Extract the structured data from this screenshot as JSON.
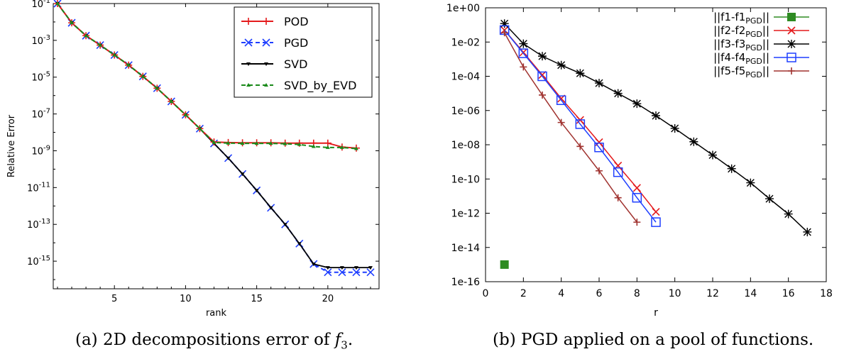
{
  "captions": {
    "left_prefix": "(a) 2D decompositions error of ",
    "left_math_base": "f",
    "left_math_sub": "3",
    "left_suffix": ".",
    "right": "(b) PGD applied on a pool of functions."
  },
  "chart_data": [
    {
      "type": "line",
      "title": "",
      "xlabel": "rank",
      "ylabel": "Relative Error",
      "xlim": [
        0.7,
        23.6
      ],
      "ylim_log10": [
        -16.5,
        -1
      ],
      "yscale": "log",
      "grid": false,
      "legend_position": "top-right",
      "xticks": [
        5,
        10,
        15,
        20
      ],
      "yticks_exponents": [
        -1,
        -3,
        -5,
        -7,
        -9,
        -11,
        -13,
        -15
      ],
      "ytick_base": "10",
      "series": [
        {
          "name": "POD",
          "color": "#e41a1c",
          "marker": "plus",
          "dash": "solid",
          "x": [
            1,
            2,
            3,
            4,
            5,
            6,
            7,
            8,
            9,
            10,
            11,
            12,
            13,
            14,
            15,
            16,
            17,
            18,
            19,
            20,
            21,
            22
          ],
          "y": [
            0.1,
            0.009,
            0.0018,
            0.00055,
            0.00016,
            4.5e-05,
            1.1e-05,
            2.5e-06,
            4.8e-07,
            9e-08,
            1.6e-08,
            3e-09,
            2.8e-09,
            2.7e-09,
            2.7e-09,
            2.7e-09,
            2.6e-09,
            2.6e-09,
            2.6e-09,
            2.6e-09,
            1.6e-09,
            1.4e-09
          ]
        },
        {
          "name": "PGD",
          "color": "#1f3fff",
          "marker": "x",
          "dash": "dashed",
          "x": [
            1,
            2,
            3,
            4,
            5,
            6,
            7,
            8,
            9,
            10,
            11,
            12,
            13,
            14,
            15,
            16,
            17,
            18,
            19,
            20,
            21,
            22,
            23
          ],
          "y": [
            0.1,
            0.009,
            0.0018,
            0.00055,
            0.00016,
            4.5e-05,
            1.1e-05,
            2.5e-06,
            4.8e-07,
            9e-08,
            1.6e-08,
            2.5e-09,
            4e-10,
            5.5e-11,
            7e-12,
            8e-13,
            1e-13,
            9e-15,
            7e-16,
            2.5e-16,
            2.5e-16,
            2.5e-16,
            2.5e-16
          ]
        },
        {
          "name": "SVD",
          "color": "#000000",
          "marker": "tri_down",
          "dash": "solid",
          "x": [
            1,
            2,
            3,
            4,
            5,
            6,
            7,
            8,
            9,
            10,
            11,
            12,
            13,
            14,
            15,
            16,
            17,
            18,
            19,
            20,
            21,
            22,
            23
          ],
          "y": [
            0.1,
            0.009,
            0.0018,
            0.00055,
            0.00016,
            4.5e-05,
            1.1e-05,
            2.5e-06,
            4.8e-07,
            9e-08,
            1.6e-08,
            2.5e-09,
            4e-10,
            5.5e-11,
            7e-12,
            8e-13,
            1e-13,
            9e-15,
            7e-16,
            4.5e-16,
            4.5e-16,
            4.5e-16,
            4.5e-16
          ]
        },
        {
          "name": "SVD_by_EVD",
          "color": "#1a8a1a",
          "marker": "tri_up",
          "dash": "dashed",
          "x": [
            1,
            2,
            3,
            4,
            5,
            6,
            7,
            8,
            9,
            10,
            11,
            12,
            13,
            14,
            15,
            16,
            17,
            18,
            19,
            20,
            21,
            22
          ],
          "y": [
            0.1,
            0.009,
            0.0018,
            0.00055,
            0.00016,
            4.5e-05,
            1.1e-05,
            2.5e-06,
            4.8e-07,
            9e-08,
            1.6e-08,
            2.8e-09,
            2.6e-09,
            2.5e-09,
            2.5e-09,
            2.5e-09,
            2.4e-09,
            2.2e-09,
            1.7e-09,
            1.5e-09,
            1.5e-09,
            1.3e-09
          ]
        }
      ]
    },
    {
      "type": "line",
      "title": "",
      "xlabel": "r",
      "ylabel": "",
      "xlim": [
        0,
        18
      ],
      "ylim_log10": [
        -16,
        0
      ],
      "yscale": "log",
      "grid": false,
      "legend_position": "top-right",
      "xticks": [
        0,
        2,
        4,
        6,
        8,
        10,
        12,
        14,
        16,
        18
      ],
      "yticks_labels": [
        "1e+00",
        "1e-02",
        "1e-04",
        "1e-06",
        "1e-08",
        "1e-10",
        "1e-12",
        "1e-14",
        "1e-16"
      ],
      "series": [
        {
          "name": "||f1-f1PGD||",
          "name_main": "||f1-f1",
          "name_sub": "PGD",
          "name_tail": "||",
          "color": "#2e8b22",
          "marker": "filled-square",
          "x": [
            1
          ],
          "y": [
            1e-15
          ]
        },
        {
          "name": "||f2-f2PGD||",
          "name_main": "||f2-f2",
          "name_sub": "PGD",
          "name_tail": "||",
          "color": "#e41a1c",
          "marker": "x",
          "x": [
            1,
            2,
            3,
            4,
            5,
            6,
            7,
            8,
            9
          ],
          "y": [
            0.05,
            0.0025,
            0.00012,
            5e-06,
            2.8e-07,
            1.4e-08,
            6e-10,
            3e-11,
            1.2e-12
          ]
        },
        {
          "name": "||f3-f3PGD||",
          "name_main": "||f3-f3",
          "name_sub": "PGD",
          "name_tail": "||",
          "color": "#000000",
          "marker": "star",
          "x": [
            1,
            2,
            3,
            4,
            5,
            6,
            7,
            8,
            9,
            10,
            11,
            12,
            13,
            14,
            15,
            16,
            17
          ],
          "y": [
            0.12,
            0.008,
            0.0015,
            0.00045,
            0.00015,
            4e-05,
            1e-05,
            2.5e-06,
            5e-07,
            9e-08,
            1.5e-08,
            2.5e-09,
            4e-10,
            6e-11,
            7e-12,
            9e-13,
            8e-14
          ]
        },
        {
          "name": "||f4-f4PGD||",
          "name_main": "||f4-f4",
          "name_sub": "PGD",
          "name_tail": "||",
          "color": "#1f3fff",
          "marker": "open-square",
          "x": [
            1,
            2,
            3,
            4,
            5,
            6,
            7,
            8,
            9
          ],
          "y": [
            0.05,
            0.0022,
            0.0001,
            4e-06,
            1.6e-07,
            7e-09,
            2.5e-10,
            8e-12,
            3e-13
          ]
        },
        {
          "name": "||f5-f5PGD||",
          "name_main": "||f5-f5",
          "name_sub": "PGD",
          "name_tail": "||",
          "color": "#a0322f",
          "marker": "plus",
          "x": [
            1,
            2,
            3,
            4,
            5,
            6,
            7,
            8
          ],
          "y": [
            0.035,
            0.00035,
            8e-06,
            2e-07,
            8e-09,
            3e-10,
            8e-12,
            3e-13
          ]
        }
      ]
    }
  ]
}
